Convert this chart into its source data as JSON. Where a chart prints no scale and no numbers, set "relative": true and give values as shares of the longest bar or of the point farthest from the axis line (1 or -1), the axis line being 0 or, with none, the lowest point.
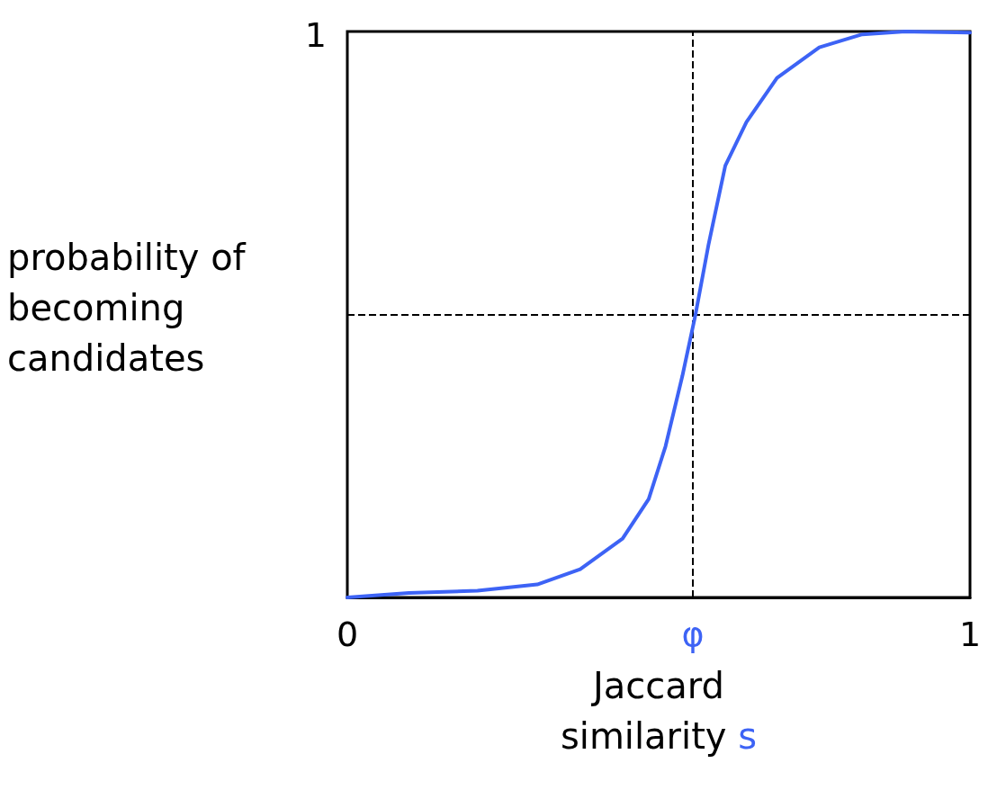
{
  "chart_data": {
    "type": "line",
    "xlabel": "Jaccard\nsimilarity s",
    "ylabel": "probability of\nbecoming\ncandidates",
    "xlim": [
      0,
      1
    ],
    "relative": true,
    "annotations": [
      "1"
    ],
    "xticks": [
      0,
      {
        "value": 0.555,
        "label": "φ"
      },
      1
    ],
    "grid": false,
    "marker": "none",
    "line_style": "solid",
    "series": [
      {
        "color": "#3d63f5",
        "x": [
          0,
          0.099,
          0.209,
          0.305,
          0.374,
          0.442,
          0.484,
          0.511,
          0.538,
          0.559,
          0.58,
          0.607,
          0.641,
          0.69,
          0.758,
          0.827,
          0.896,
          1
        ],
        "values": [
          0,
          0.008,
          0.012,
          0.023,
          0.05,
          0.104,
          0.174,
          0.267,
          0.391,
          0.499,
          0.623,
          0.763,
          0.84,
          0.918,
          0.972,
          0.995,
          1,
          0.998
        ]
      }
    ],
    "ref_lines": [
      {
        "axis": "x",
        "value": 0.555,
        "line_style": "dashed"
      },
      {
        "axis": "y",
        "value": 0.5,
        "line_style": "dashed"
      }
    ]
  }
}
